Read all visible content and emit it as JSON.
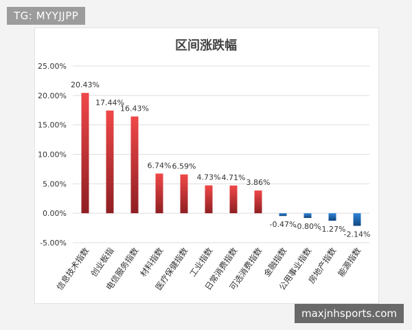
{
  "watermarks": {
    "top_left": "TG: MYYJJPP",
    "bottom_right": "maxjnhsports.com"
  },
  "colors": {
    "positive_top": "#f04848",
    "positive_bottom": "#8e1f23",
    "negative_top": "#2e86d8",
    "negative_bottom": "#12467f",
    "grid": "#dedede",
    "text": "#333333"
  },
  "chart_data": {
    "type": "bar",
    "title": "区间涨跌幅",
    "categories": [
      "信息技术指数",
      "创业板指",
      "电信服务指数",
      "材料指数",
      "医疗保健指数",
      "工业指数",
      "日常消费指数",
      "可选消费指数",
      "金融指数",
      "公用事业指数",
      "房地产指数",
      "能源指数"
    ],
    "values": [
      20.43,
      17.44,
      16.43,
      6.74,
      6.59,
      4.73,
      4.71,
      3.86,
      -0.47,
      -0.8,
      -1.27,
      -2.14
    ],
    "data_labels": [
      "20.43%",
      "17.44%",
      "16.43%",
      "6.74%",
      "6.59%",
      "4.73%",
      "4.71%",
      "3.86%",
      "-0.47%",
      "-0.80%",
      "-1.27%",
      "-2.14%"
    ],
    "ylim": [
      -5,
      25
    ],
    "yticks": [
      25,
      20,
      15,
      10,
      5,
      0,
      -5
    ],
    "ytick_labels": [
      "25.00%",
      "20.00%",
      "15.00%",
      "10.00%",
      "5.00%",
      "0.00%",
      "-5.00%"
    ],
    "grid": true,
    "legend": false,
    "xlabel": "",
    "ylabel": ""
  }
}
